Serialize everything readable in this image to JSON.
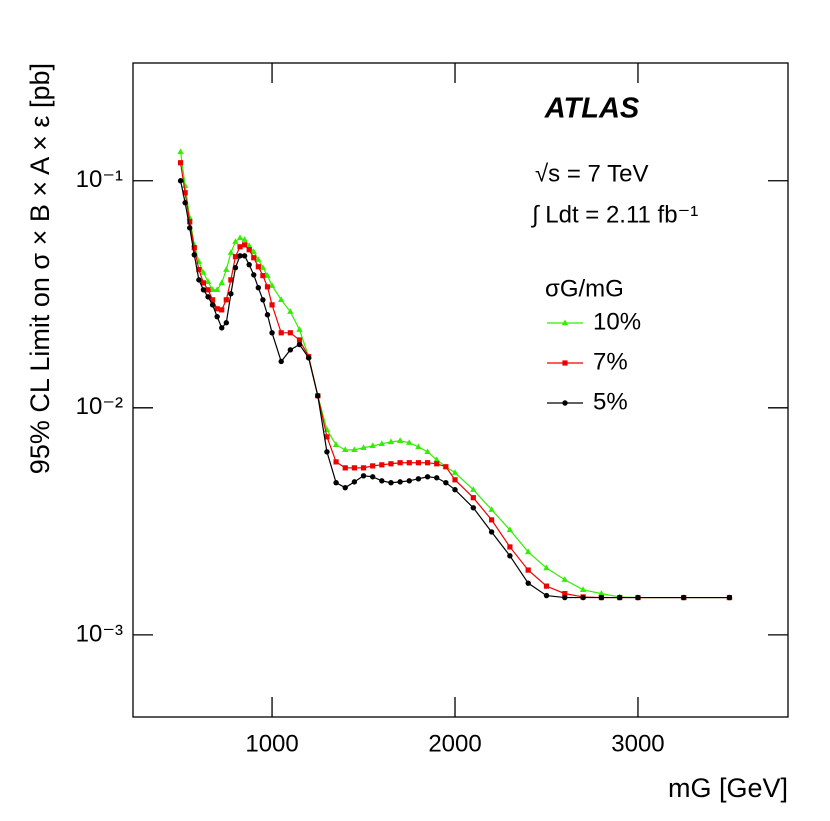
{
  "chart_data": {
    "type": "line",
    "experiment_label": "ATLAS",
    "annotations": [
      "√s = 7 TeV",
      "∫ Ldt = 2.11 fb⁻¹"
    ],
    "legend_title": "σG/mG",
    "x_label": "mG [GeV]",
    "y_label": "95% CL Limit on σ × B × A × ε  [pb]",
    "log_y": true,
    "xlim": [
      240,
      3820
    ],
    "ylim": [
      0.000435,
      0.33
    ],
    "xticks": [
      1000,
      2000,
      3000
    ],
    "yticks": [
      {
        "value": 0.001,
        "label": "10⁻³"
      },
      {
        "value": 0.01,
        "label": "10⁻²"
      },
      {
        "value": 0.1,
        "label": "10⁻¹"
      }
    ],
    "x": [
      500,
      525,
      550,
      575,
      600,
      625,
      650,
      675,
      700,
      725,
      750,
      775,
      800,
      825,
      850,
      875,
      900,
      925,
      950,
      975,
      1000,
      1050,
      1100,
      1150,
      1200,
      1250,
      1300,
      1350,
      1400,
      1450,
      1500,
      1550,
      1600,
      1650,
      1700,
      1750,
      1800,
      1850,
      1900,
      1950,
      2000,
      2100,
      2200,
      2300,
      2400,
      2500,
      2600,
      2700,
      2800,
      2900,
      3000,
      3250,
      3500
    ],
    "series": [
      {
        "name": "10%",
        "color": "#33ee00",
        "marker": "triangle",
        "values": [
          0.134,
          0.095,
          0.0687,
          0.0522,
          0.044,
          0.0394,
          0.0359,
          0.0331,
          0.0331,
          0.0355,
          0.0406,
          0.0482,
          0.0539,
          0.056,
          0.055,
          0.0517,
          0.0486,
          0.0449,
          0.0414,
          0.0382,
          0.0345,
          0.0299,
          0.0265,
          0.0221,
          0.0168,
          0.0113,
          0.008,
          0.00687,
          0.00653,
          0.00653,
          0.00667,
          0.0068,
          0.00694,
          0.00708,
          0.00716,
          0.00702,
          0.00673,
          0.0064,
          0.0059,
          0.0055,
          0.00518,
          0.00436,
          0.00356,
          0.0029,
          0.00232,
          0.00197,
          0.00175,
          0.00158,
          0.00152,
          0.00147,
          0.00146,
          0.00146,
          0.00146
        ]
      },
      {
        "name": "7%",
        "color": "#ee0000",
        "marker": "square",
        "values": [
          0.12,
          0.0885,
          0.066,
          0.0507,
          0.0406,
          0.0355,
          0.0331,
          0.0299,
          0.0273,
          0.027,
          0.0299,
          0.0366,
          0.0463,
          0.0512,
          0.0522,
          0.0497,
          0.0458,
          0.0418,
          0.0382,
          0.0341,
          0.0284,
          0.0214,
          0.0214,
          0.0199,
          0.0168,
          0.0113,
          0.00745,
          0.00578,
          0.00544,
          0.00544,
          0.00544,
          0.00555,
          0.00561,
          0.00567,
          0.00573,
          0.00573,
          0.00573,
          0.00573,
          0.00567,
          0.0055,
          0.00482,
          0.00402,
          0.00321,
          0.00244,
          0.00193,
          0.00164,
          0.00152,
          0.00147,
          0.00146,
          0.00146,
          0.00146,
          0.00146,
          0.00146
        ]
      },
      {
        "name": "5%",
        "color": "#000000",
        "marker": "circle",
        "values": [
          0.1,
          0.08,
          0.062,
          0.0472,
          0.0366,
          0.0331,
          0.0308,
          0.0284,
          0.0252,
          0.0225,
          0.0237,
          0.0318,
          0.0414,
          0.0467,
          0.0467,
          0.0427,
          0.0385,
          0.0338,
          0.0299,
          0.0257,
          0.0214,
          0.016,
          0.018,
          0.019,
          0.0166,
          0.0113,
          0.0064,
          0.00468,
          0.00445,
          0.00472,
          0.00502,
          0.00497,
          0.00477,
          0.00468,
          0.00472,
          0.00477,
          0.00487,
          0.00497,
          0.00492,
          0.00468,
          0.00436,
          0.00363,
          0.00284,
          0.00223,
          0.00169,
          0.00149,
          0.00146,
          0.00146,
          0.00146,
          0.00146,
          0.00146,
          0.00146,
          0.00146
        ]
      }
    ]
  }
}
